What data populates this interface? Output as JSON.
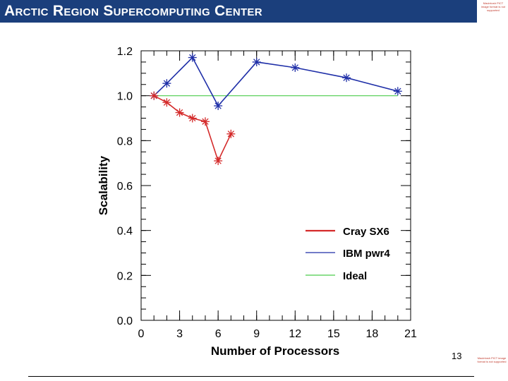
{
  "header": {
    "title": "Arctic Region Supercomputing Center",
    "logo_top_text": "Macintosh PICT image format is not supported",
    "logo_bottom_text": "Macintosh PICT image format is not supported"
  },
  "footer": {
    "page_number": "13"
  },
  "chart_data": {
    "type": "line",
    "title": "",
    "xlabel": "Number of Processors",
    "ylabel": "Scalability",
    "xlim": [
      0,
      21
    ],
    "ylim": [
      0.0,
      1.2
    ],
    "xticks": [
      0,
      3,
      6,
      9,
      12,
      15,
      18,
      21
    ],
    "xtick_labels": [
      "0",
      "3",
      "6",
      "9",
      "12",
      "15",
      "18",
      "21"
    ],
    "yticks": [
      0.0,
      0.2,
      0.4,
      0.6,
      0.8,
      1.0,
      1.2
    ],
    "ytick_labels": [
      "0.0",
      "0.2",
      "0.4",
      "0.6",
      "0.8",
      "1.0",
      "1.2"
    ],
    "legend_position": "bottom-right",
    "series": [
      {
        "name": "Cray SX6",
        "color": "#d42a2a",
        "marker": "asterisk",
        "x": [
          1,
          2,
          3,
          4,
          5,
          6,
          7
        ],
        "y": [
          1.0,
          0.97,
          0.925,
          0.9,
          0.885,
          0.71,
          0.83
        ]
      },
      {
        "name": "IBM pwr4",
        "color": "#1f2fa8",
        "marker": "asterisk",
        "x": [
          1,
          2,
          4,
          6,
          9,
          12,
          16,
          20
        ],
        "y": [
          1.0,
          1.055,
          1.17,
          0.955,
          1.15,
          1.125,
          1.08,
          1.02
        ]
      },
      {
        "name": "Ideal",
        "color": "#4ccc4c",
        "marker": "none",
        "x": [
          1,
          20
        ],
        "y": [
          1.0,
          1.0
        ]
      }
    ]
  }
}
